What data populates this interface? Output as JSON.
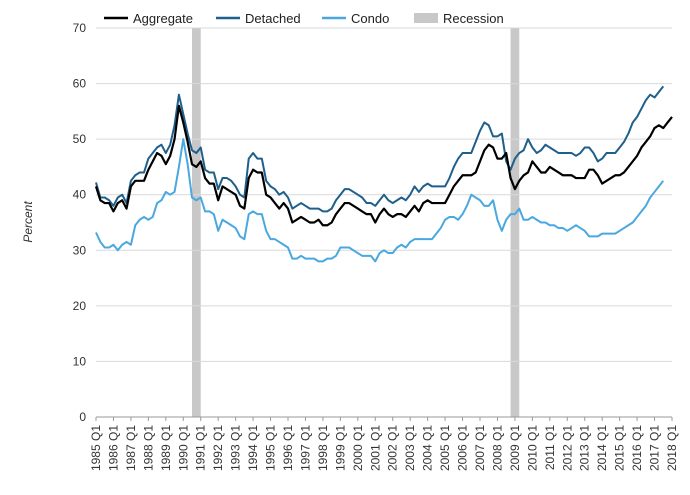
{
  "chart_data": {
    "type": "line",
    "ylabel": "Percent",
    "xlabel": "",
    "ylim": [
      0,
      70
    ],
    "yticks": [
      0,
      10,
      20,
      30,
      40,
      50,
      60,
      70
    ],
    "grid": "horizontal",
    "legend_position": "top",
    "start_year": 1985,
    "start_quarter": 1,
    "x_tick_labels": [
      "1985 Q1",
      "1986 Q1",
      "1987 Q1",
      "1988 Q1",
      "1989 Q1",
      "1990 Q1",
      "1991 Q1",
      "1992 Q1",
      "1993 Q1",
      "1994 Q1",
      "1995 Q1",
      "1996 Q1",
      "1997 Q1",
      "1998 Q1",
      "1999 Q1",
      "2000 Q1",
      "2001 Q1",
      "2002 Q1",
      "2003 Q1",
      "2004 Q1",
      "2005 Q1",
      "2006 Q1",
      "2007 Q1",
      "2008 Q1",
      "2009 Q1",
      "2010 Q1",
      "2011 Q1",
      "2012 Q1",
      "2013 Q1",
      "2014 Q1",
      "2015 Q1",
      "2016 Q1",
      "2017 Q1",
      "2018 Q1"
    ],
    "recessions": [
      {
        "start": "1990 Q3",
        "end": "1991 Q1"
      },
      {
        "start": "2008 Q4",
        "end": "2009 Q2"
      }
    ],
    "legend": {
      "aggregate": "Aggregate",
      "detached": "Detached",
      "condo": "Condo",
      "recession": "Recession"
    },
    "colors": {
      "aggregate": "#000000",
      "detached": "#1f5f8b",
      "condo": "#4aa8e0",
      "recession": "#c8c8c8",
      "grid": "#d9d9d9"
    },
    "series": [
      {
        "key": "aggregate",
        "name": "Aggregate",
        "values": [
          41.5,
          39.0,
          38.5,
          38.5,
          37.0,
          38.5,
          39.0,
          37.5,
          41.5,
          42.5,
          42.5,
          42.5,
          44.5,
          46.0,
          47.5,
          47.0,
          45.5,
          47.0,
          50.0,
          56.0,
          53.0,
          49.5,
          45.5,
          45.0,
          46.0,
          43.0,
          42.0,
          42.0,
          39.0,
          41.5,
          41.0,
          40.5,
          40.0,
          38.0,
          37.5,
          43.0,
          44.5,
          44.0,
          44.0,
          40.0,
          39.5,
          38.5,
          37.5,
          38.5,
          37.5,
          35.0,
          35.5,
          36.0,
          35.5,
          35.0,
          35.0,
          35.5,
          34.5,
          34.5,
          35.0,
          36.5,
          37.5,
          38.5,
          38.5,
          38.0,
          37.5,
          37.0,
          36.5,
          36.5,
          35.0,
          36.5,
          37.5,
          36.5,
          36.0,
          36.5,
          36.5,
          36.0,
          37.0,
          38.0,
          37.0,
          38.5,
          39.0,
          38.5,
          38.5,
          38.5,
          38.5,
          40.0,
          41.5,
          42.5,
          43.5,
          43.5,
          43.5,
          44.0,
          46.0,
          48.0,
          49.0,
          48.5,
          46.5,
          46.5,
          47.5,
          43.0,
          41.0,
          42.5,
          43.5,
          44.0,
          46.0,
          45.0,
          44.0,
          44.0,
          45.0,
          44.5,
          44.0,
          43.5,
          43.5,
          43.5,
          43.0,
          43.0,
          43.0,
          44.5,
          44.5,
          43.5,
          42.0,
          42.5,
          43.0,
          43.5,
          43.5,
          44.0,
          45.0,
          46.0,
          47.0,
          48.5,
          49.5,
          50.5,
          52.0,
          52.5,
          52.0,
          53.0,
          54.0
        ]
      },
      {
        "key": "detached",
        "name": "Detached",
        "values": [
          42.2,
          39.5,
          39.5,
          39.0,
          38.0,
          39.5,
          40.0,
          38.5,
          42.5,
          43.5,
          44.0,
          44.0,
          46.5,
          47.5,
          48.5,
          49.0,
          47.5,
          49.0,
          52.5,
          58.0,
          54.5,
          51.0,
          48.0,
          47.5,
          48.5,
          44.5,
          44.0,
          44.0,
          41.0,
          43.0,
          43.0,
          42.5,
          41.5,
          40.0,
          39.5,
          46.5,
          47.5,
          46.5,
          46.5,
          42.5,
          41.5,
          41.0,
          40.0,
          40.5,
          39.5,
          37.5,
          38.0,
          38.5,
          38.0,
          37.5,
          37.5,
          37.5,
          37.0,
          37.0,
          37.5,
          39.0,
          40.0,
          41.0,
          41.0,
          40.5,
          40.0,
          39.5,
          38.5,
          38.5,
          38.0,
          39.0,
          40.0,
          39.0,
          38.5,
          39.0,
          39.5,
          39.0,
          40.0,
          41.5,
          40.5,
          41.5,
          42.0,
          41.5,
          41.5,
          41.5,
          41.5,
          43.0,
          45.0,
          46.5,
          47.5,
          47.5,
          47.5,
          49.5,
          51.5,
          53.0,
          52.5,
          50.5,
          50.5,
          51.0,
          46.0,
          44.5,
          46.5,
          47.5,
          48.0,
          50.0,
          48.5,
          47.5,
          48.0,
          49.0,
          48.5,
          48.0,
          47.5,
          47.5,
          47.5,
          47.5,
          47.0,
          47.5,
          48.5,
          48.5,
          47.5,
          46.0,
          46.5,
          47.5,
          47.5,
          47.5,
          48.5,
          49.5,
          51.0,
          53.0,
          54.0,
          55.5,
          57.0,
          58.0,
          57.5,
          58.5,
          59.5
        ]
      },
      {
        "key": "condo",
        "name": "Condo",
        "values": [
          33.2,
          31.5,
          30.5,
          30.5,
          31.0,
          30.0,
          31.0,
          31.5,
          31.0,
          34.5,
          35.5,
          36.0,
          35.5,
          36.0,
          38.5,
          39.0,
          40.5,
          40.0,
          40.5,
          45.0,
          50.0,
          45.5,
          39.5,
          39.0,
          39.5,
          37.0,
          37.0,
          36.5,
          33.5,
          35.5,
          35.0,
          34.5,
          34.0,
          32.5,
          32.0,
          36.5,
          37.0,
          36.5,
          36.5,
          33.5,
          32.0,
          32.0,
          31.5,
          31.0,
          30.5,
          28.5,
          28.5,
          29.0,
          28.5,
          28.5,
          28.5,
          28.0,
          28.0,
          28.5,
          28.5,
          29.0,
          30.5,
          30.5,
          30.5,
          30.0,
          29.5,
          29.0,
          29.0,
          29.0,
          28.0,
          29.5,
          30.0,
          29.5,
          29.5,
          30.5,
          31.0,
          30.5,
          31.5,
          32.0,
          32.0,
          32.0,
          32.0,
          32.0,
          33.0,
          34.0,
          35.5,
          36.0,
          36.0,
          35.5,
          36.5,
          38.0,
          40.0,
          39.5,
          39.0,
          38.0,
          38.0,
          39.0,
          35.5,
          33.5,
          35.5,
          36.5,
          36.5,
          37.5,
          35.5,
          35.5,
          36.0,
          35.5,
          35.0,
          35.0,
          34.5,
          34.5,
          34.0,
          34.0,
          33.5,
          34.0,
          34.5,
          34.0,
          33.5,
          32.5,
          32.5,
          32.5,
          33.0,
          33.0,
          33.0,
          33.0,
          33.5,
          34.0,
          34.5,
          35.0,
          36.0,
          37.0,
          38.0,
          39.5,
          40.5,
          41.5,
          42.5
        ]
      }
    ]
  }
}
